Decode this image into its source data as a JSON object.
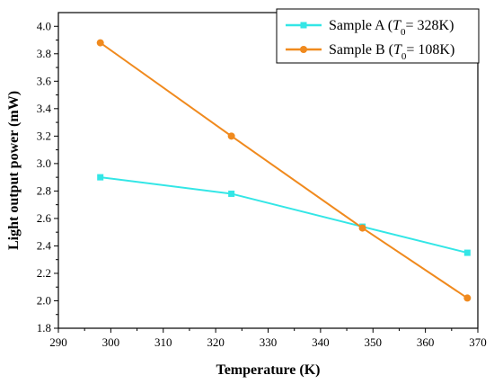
{
  "chart_data": {
    "type": "line",
    "title": "",
    "xlabel": "Temperature (K)",
    "ylabel": "Light output power (mW)",
    "xlim": [
      290,
      370
    ],
    "ylim": [
      1.8,
      4.1
    ],
    "xticks": [
      290,
      300,
      310,
      320,
      330,
      340,
      350,
      360,
      370
    ],
    "yticks": [
      1.8,
      2.0,
      2.2,
      2.4,
      2.6,
      2.8,
      3.0,
      3.2,
      3.4,
      3.6,
      3.8,
      4.0
    ],
    "grid": false,
    "legend_position": "top-right",
    "series": [
      {
        "name": "Sample A",
        "T0": "328K",
        "color": "#33e6e6",
        "marker": "square",
        "x": [
          298,
          323,
          348,
          368
        ],
        "y": [
          2.9,
          2.78,
          2.54,
          2.35
        ]
      },
      {
        "name": "Sample B",
        "T0": "108K",
        "color": "#f08a1e",
        "marker": "circle",
        "x": [
          298,
          323,
          348,
          368
        ],
        "y": [
          3.88,
          3.2,
          2.53,
          2.02
        ]
      }
    ]
  }
}
